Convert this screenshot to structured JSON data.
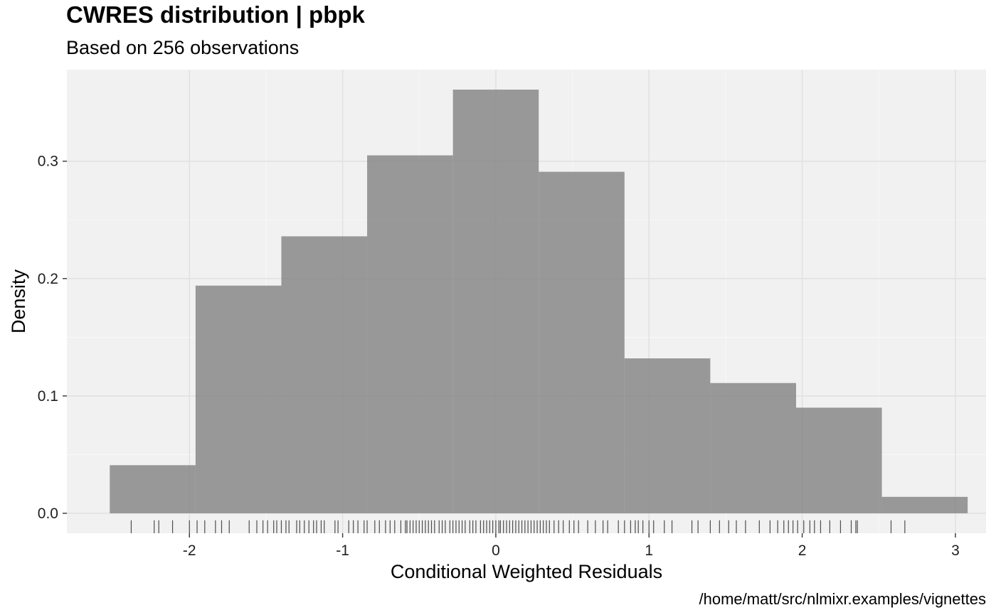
{
  "chart_data": {
    "type": "bar",
    "title": "CWRES distribution | pbpk",
    "subtitle": "Based on 256 observations",
    "xlabel": "Conditional Weighted Residuals",
    "ylabel": "Density",
    "caption": "/home/matt/src/nlmixr.examples/vignettes",
    "xlim": [
      -2.8,
      3.2
    ],
    "ylim": [
      -0.017,
      0.378
    ],
    "x_ticks": [
      -2,
      -1,
      0,
      1,
      2,
      3
    ],
    "x_tick_labels": [
      "-2",
      "-1",
      "0",
      "1",
      "2",
      "3"
    ],
    "y_ticks": [
      0.0,
      0.1,
      0.2,
      0.3
    ],
    "y_tick_labels": [
      "0.0",
      "0.1",
      "0.2",
      "0.3"
    ],
    "grid": true,
    "bins": [
      {
        "x0": -2.52,
        "x1": -1.96,
        "density": 0.041
      },
      {
        "x0": -1.96,
        "x1": -1.4,
        "density": 0.194
      },
      {
        "x0": -1.4,
        "x1": -0.84,
        "density": 0.236
      },
      {
        "x0": -0.84,
        "x1": -0.28,
        "density": 0.305
      },
      {
        "x0": -0.28,
        "x1": 0.28,
        "density": 0.361
      },
      {
        "x0": 0.28,
        "x1": 0.84,
        "density": 0.291
      },
      {
        "x0": 0.84,
        "x1": 1.4,
        "density": 0.132
      },
      {
        "x0": 1.4,
        "x1": 1.96,
        "density": 0.111
      },
      {
        "x0": 1.96,
        "x1": 2.52,
        "density": 0.09
      },
      {
        "x0": 2.52,
        "x1": 3.08,
        "density": 0.014
      }
    ],
    "rug_x": [
      -2.38,
      -2.23,
      -2.2,
      -2.11,
      -2.0,
      -1.95,
      -1.9,
      -1.83,
      -1.79,
      -1.74,
      -1.61,
      -1.56,
      -1.52,
      -1.49,
      -1.45,
      -1.43,
      -1.4,
      -1.37,
      -1.35,
      -1.3,
      -1.28,
      -1.25,
      -1.22,
      -1.19,
      -1.17,
      -1.14,
      -1.12,
      -1.05,
      -1.03,
      -0.96,
      -0.93,
      -0.9,
      -0.86,
      -0.84,
      -0.79,
      -0.76,
      -0.72,
      -0.69,
      -0.66,
      -0.62,
      -0.59,
      -0.58,
      -0.56,
      -0.54,
      -0.52,
      -0.5,
      -0.48,
      -0.46,
      -0.44,
      -0.42,
      -0.4,
      -0.37,
      -0.35,
      -0.33,
      -0.3,
      -0.28,
      -0.26,
      -0.24,
      -0.22,
      -0.2,
      -0.17,
      -0.15,
      -0.13,
      -0.1,
      -0.08,
      -0.06,
      -0.04,
      -0.02,
      0.0,
      0.02,
      0.03,
      0.05,
      0.07,
      0.09,
      0.11,
      0.13,
      0.15,
      0.17,
      0.19,
      0.21,
      0.23,
      0.25,
      0.27,
      0.29,
      0.31,
      0.33,
      0.35,
      0.38,
      0.41,
      0.44,
      0.48,
      0.51,
      0.54,
      0.6,
      0.65,
      0.7,
      0.73,
      0.8,
      0.84,
      0.88,
      0.91,
      0.93,
      0.96,
      1.0,
      1.03,
      1.1,
      1.15,
      1.28,
      1.32,
      1.4,
      1.46,
      1.52,
      1.57,
      1.63,
      1.72,
      1.79,
      1.84,
      1.88,
      1.91,
      1.94,
      1.97,
      2.01,
      2.05,
      2.08,
      2.12,
      2.18,
      2.25,
      2.32,
      2.35,
      2.36,
      2.58,
      2.67
    ]
  }
}
